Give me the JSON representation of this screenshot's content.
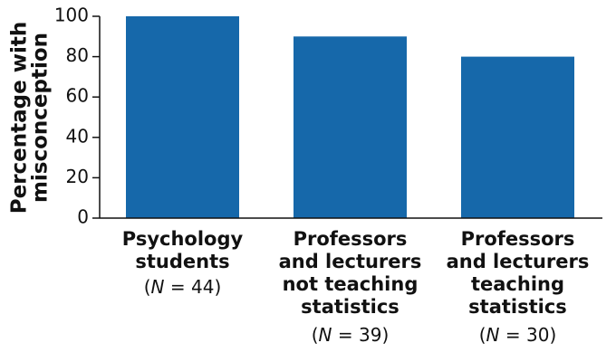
{
  "chart_data": {
    "type": "bar",
    "y_label": [
      "Percentage with",
      "misconception"
    ],
    "categories": [
      [
        "Psychology",
        "students"
      ],
      [
        "Professors",
        "and lecturers",
        "not teaching",
        "statistics"
      ],
      [
        "Professors",
        "and lecturers",
        "teaching",
        "statistics"
      ]
    ],
    "sample_labels": [
      "(N = 44)",
      "(N = 39)",
      "(N = 30)"
    ],
    "values": [
      100,
      90,
      80
    ],
    "color": "#1668aa",
    "ylim": [
      0,
      100
    ],
    "yticks": [
      0,
      20,
      40,
      60,
      80,
      100
    ],
    "grid": false
  }
}
